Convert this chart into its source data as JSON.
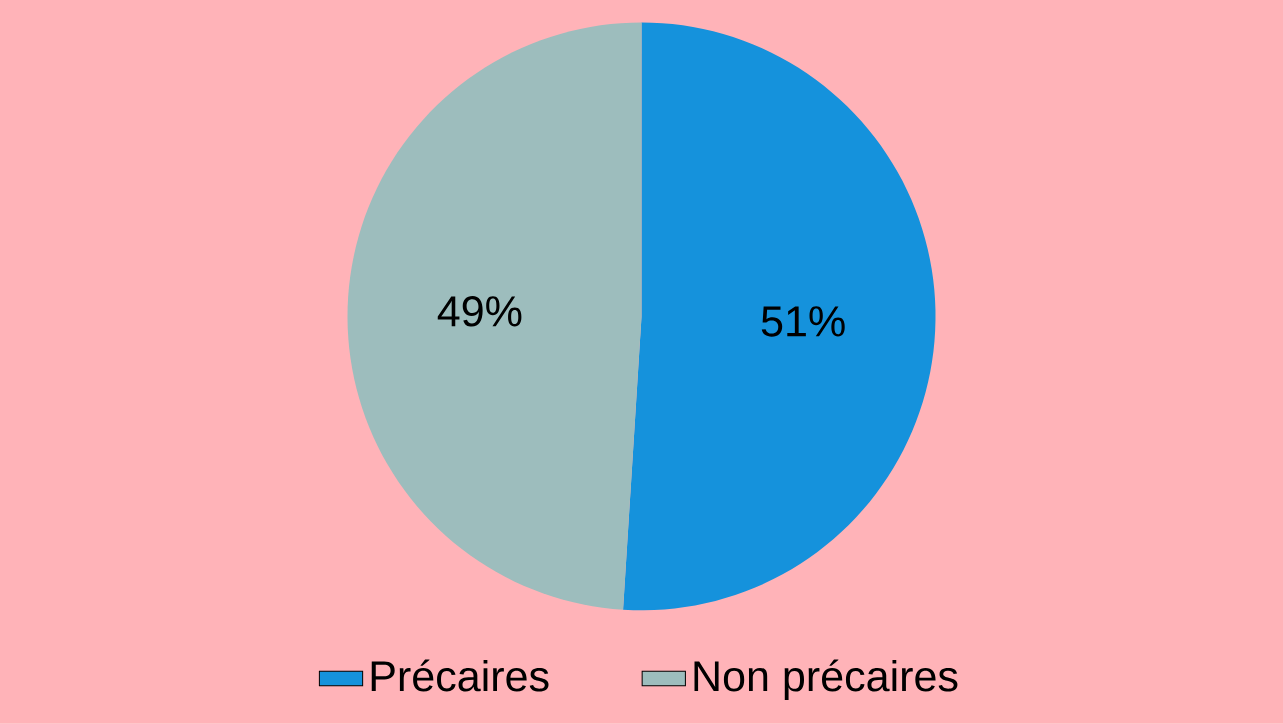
{
  "chart_data": {
    "type": "pie",
    "categories": [
      "Précaires",
      "Non précaires"
    ],
    "values": [
      51,
      49
    ],
    "colors": [
      "#1592dc",
      "#9dbdbd"
    ],
    "value_labels": [
      "51%",
      "49%"
    ],
    "legend": "bottom"
  }
}
